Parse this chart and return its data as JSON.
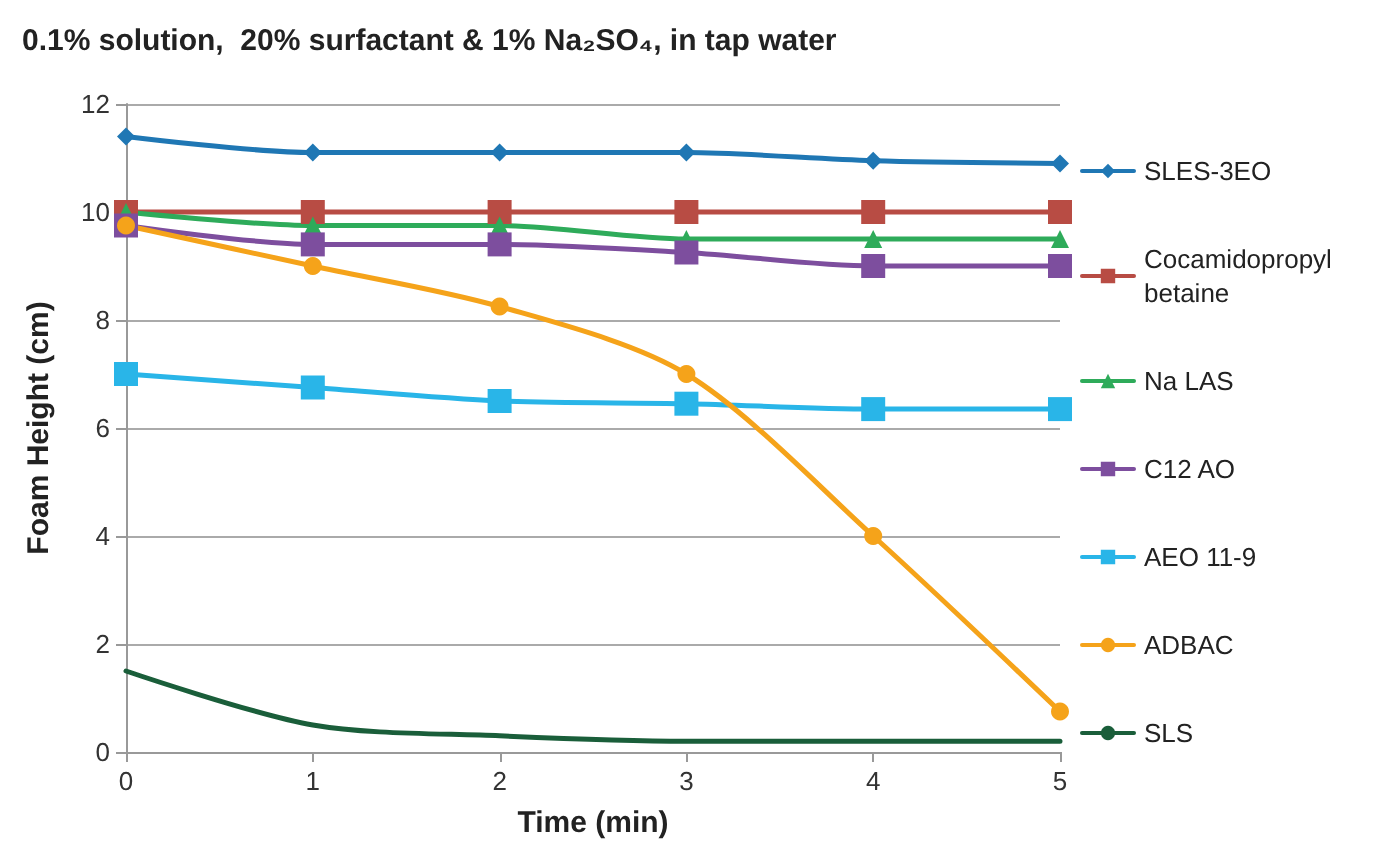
{
  "chart_data": {
    "type": "line",
    "title": "0.1% solution,  20% surfactant & 1% Na₂SO₄, in tap water",
    "xlabel": "Time (min)",
    "ylabel": "Foam Height (cm)",
    "x": [
      0,
      1,
      2,
      3,
      4,
      5
    ],
    "xlim": [
      0,
      5
    ],
    "xticks": [
      0,
      1,
      2,
      3,
      4,
      5
    ],
    "ylim": [
      0,
      12
    ],
    "yticks": [
      0,
      2,
      4,
      6,
      8,
      10,
      12
    ],
    "grid": "y",
    "legend": "right",
    "series": [
      {
        "name": "SLES-3EO",
        "color": "#1f77b4",
        "marker": "diamond",
        "values": [
          11.4,
          11.1,
          11.1,
          11.1,
          10.95,
          10.9
        ]
      },
      {
        "name": "Cocamidopropyl betaine",
        "color": "#b84c44",
        "marker": "square",
        "values": [
          10,
          10,
          10,
          10,
          10,
          10
        ]
      },
      {
        "name": "Na LAS",
        "color": "#2eab5a",
        "marker": "triangle",
        "values": [
          10,
          9.75,
          9.75,
          9.5,
          9.5,
          9.5
        ]
      },
      {
        "name": "C12 AO",
        "color": "#7d4e9e",
        "marker": "square",
        "values": [
          9.75,
          9.4,
          9.4,
          9.25,
          9,
          9
        ]
      },
      {
        "name": "AEO 11-9",
        "color": "#29b5e8",
        "marker": "square",
        "values": [
          7,
          6.75,
          6.5,
          6.45,
          6.35,
          6.35
        ]
      },
      {
        "name": "ADBAC",
        "color": "#f5a31a",
        "marker": "circle",
        "values": [
          9.75,
          9,
          8.25,
          7,
          4,
          0.75
        ]
      },
      {
        "name": "SLS",
        "color": "#1a5e3a",
        "marker": "none",
        "values": [
          1.5,
          0.5,
          0.3,
          0.2,
          0.2,
          0.2
        ]
      }
    ]
  }
}
